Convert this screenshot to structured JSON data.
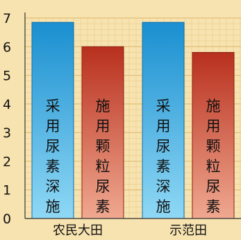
{
  "chart_data": {
    "type": "bar",
    "categories": [
      "农民大田",
      "示范田"
    ],
    "series": [
      {
        "values": [
          6.85,
          6.85
        ],
        "bar_label": "采用尿素深施"
      },
      {
        "values": [
          6.0,
          5.8
        ],
        "bar_label": "施用颗粒尿素"
      }
    ],
    "ylim": [
      0,
      7
    ],
    "yticks": [
      "0",
      "1",
      "2",
      "3",
      "4",
      "5",
      "6",
      "7"
    ],
    "grid": true,
    "colors": {
      "background": "#f7e3b0",
      "grid": "#e2bf78",
      "series_1_top": "#1a8fd0",
      "series_1_bottom": "#8fd8f5",
      "series_2_top": "#b8301e",
      "series_2_bottom": "#f0a890"
    }
  }
}
